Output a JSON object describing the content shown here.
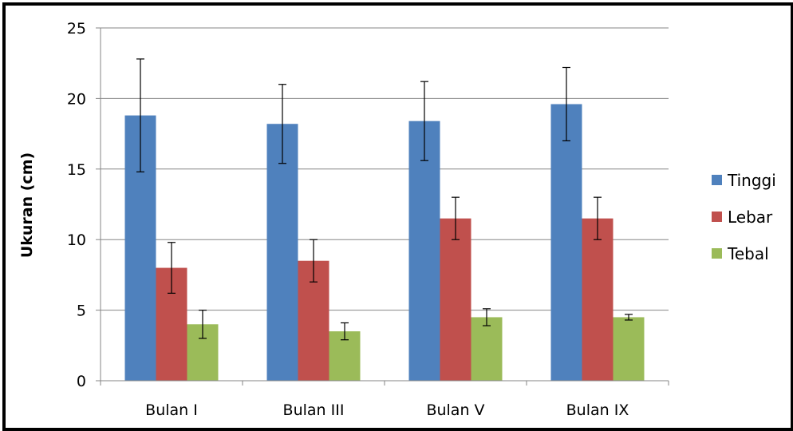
{
  "chart_data": {
    "type": "bar",
    "title": "",
    "xlabel": "",
    "ylabel": "Ukuran (cm)",
    "ylim": [
      0,
      25
    ],
    "yticks": [
      0,
      5,
      10,
      15,
      20,
      25
    ],
    "grid": true,
    "legend_position": "right",
    "categories": [
      "Bulan I",
      "Bulan III",
      "Bulan V",
      "Bulan IX"
    ],
    "series": [
      {
        "name": "Tinggi",
        "color": "#4F81BD",
        "values": [
          18.8,
          18.2,
          18.4,
          19.6
        ],
        "errors": [
          4.0,
          2.8,
          2.8,
          2.6
        ]
      },
      {
        "name": "Lebar",
        "color": "#C0504D",
        "values": [
          8.0,
          8.5,
          11.5,
          11.5
        ],
        "errors": [
          1.8,
          1.5,
          1.5,
          1.5
        ]
      },
      {
        "name": "Tebal",
        "color": "#9BBB59",
        "values": [
          4.0,
          3.5,
          4.5,
          4.5
        ],
        "errors": [
          1.0,
          0.6,
          0.6,
          0.2
        ]
      }
    ]
  }
}
